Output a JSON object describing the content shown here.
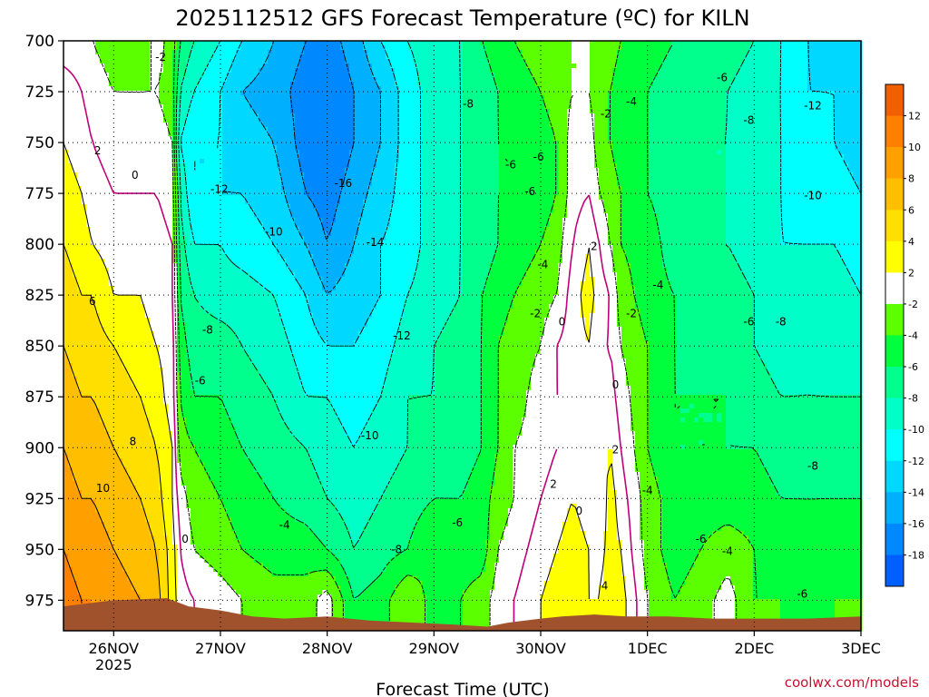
{
  "chart_data": {
    "type": "heatmap",
    "title": "2025112512 GFS Forecast Temperature (ºC) for KILN",
    "xlabel": "Forecast Time (UTC)",
    "ylabel": "",
    "credit": "coolwx.com/models",
    "y_ticks": [
      "700",
      "725",
      "750",
      "775",
      "800",
      "825",
      "850",
      "875",
      "900",
      "925",
      "950",
      "975"
    ],
    "ylim": [
      700,
      990
    ],
    "y_inverted": true,
    "x_ticks": [
      "26NOV",
      "27NOV",
      "28NOV",
      "29NOV",
      "30NOV",
      "1DEC",
      "2DEC",
      "3DEC"
    ],
    "x_tick_sub": "2025",
    "xlim": [
      -0.47,
      7.0
    ],
    "grid": true,
    "colorbar": {
      "labels": [
        "12",
        "10",
        "8",
        "6",
        "4",
        "2",
        "-2",
        "-4",
        "-6",
        "-8",
        "-10",
        "-12",
        "-14",
        "-16",
        "-18"
      ],
      "colors": [
        "#f06000",
        "#ff7f00",
        "#ff9f00",
        "#ffbf00",
        "#ffdf00",
        "#ffff00",
        "#ffffff",
        "#5bff00",
        "#00ff3c",
        "#00ff8c",
        "#00ffc8",
        "#00ffff",
        "#00d8ff",
        "#00b0ff",
        "#0088ff",
        "#0060ff"
      ]
    },
    "columns_x": [
      -0.47,
      -0.3,
      -0.2,
      0.0,
      0.25,
      0.4,
      0.55,
      0.62,
      0.75,
      1.0,
      1.2,
      1.5,
      1.8,
      2.0,
      2.25,
      2.5,
      2.75,
      3.0,
      3.25,
      3.45,
      3.6,
      3.75,
      4.0,
      4.15,
      4.3,
      4.45,
      4.55,
      4.65,
      4.75,
      5.0,
      5.25,
      5.5,
      5.75,
      6.0,
      6.25,
      6.5,
      6.75,
      7.0
    ],
    "levels": [
      700,
      725,
      750,
      775,
      800,
      825,
      850,
      875,
      900,
      925,
      950,
      975
    ],
    "temperature_c": [
      [
        -1,
        1,
        2,
        3,
        4,
        5,
        6,
        7,
        8,
        9,
        10,
        11
      ],
      [
        -1,
        0,
        1,
        2,
        3,
        4,
        5,
        6,
        7,
        8,
        9,
        10
      ],
      [
        -2,
        -1,
        0,
        1,
        2,
        4,
        5,
        6,
        7,
        8,
        9,
        10
      ],
      [
        -3,
        -2,
        -1,
        0,
        1,
        2,
        4,
        5,
        6,
        7,
        8,
        9
      ],
      [
        -4,
        -2,
        -1,
        0,
        1,
        2,
        3,
        4,
        5,
        6,
        7,
        8
      ],
      [
        -1,
        -2,
        -1,
        0,
        1,
        1,
        2,
        3,
        4,
        5,
        6,
        7
      ],
      [
        -3,
        -3,
        -2,
        -1,
        0,
        0,
        1,
        1,
        2,
        2,
        3,
        3
      ],
      [
        -6,
        -8,
        -10,
        -8,
        -7,
        -6,
        -5,
        -4,
        -3,
        -1,
        0,
        1
      ],
      [
        -8,
        -10,
        -12,
        -12,
        -10,
        -8,
        -7,
        -6,
        -4,
        -3,
        -2,
        0
      ],
      [
        -10,
        -12,
        -12,
        -12,
        -10,
        -9,
        -7,
        -6,
        -5,
        -4,
        -3,
        -1
      ],
      [
        -12,
        -14,
        -13,
        -12,
        -11,
        -9,
        -8,
        -7,
        -6,
        -5,
        -4,
        -2
      ],
      [
        -14,
        -15,
        -14,
        -13,
        -12,
        -10,
        -9,
        -8,
        -7,
        -6,
        -5,
        -3
      ],
      [
        -16,
        -17,
        -17,
        -16,
        -14,
        -12,
        -11,
        -10,
        -8,
        -7,
        -5,
        -3
      ],
      [
        -17,
        -18,
        -18,
        -17,
        -16,
        -14,
        -12,
        -10,
        -9,
        -8,
        -6,
        -1
      ],
      [
        -15,
        -16,
        -16,
        -15,
        -14,
        -13,
        -12,
        -11,
        -10,
        -9,
        -8,
        -6
      ],
      [
        -12,
        -14,
        -14,
        -13,
        -12,
        -12,
        -11,
        -10,
        -9,
        -8,
        -7,
        -5
      ],
      [
        -10,
        -11,
        -11,
        -11,
        -11,
        -10,
        -9,
        -8,
        -8,
        -7,
        -6,
        -2
      ],
      [
        -9,
        -9,
        -9,
        -9,
        -9,
        -9,
        -8,
        -8,
        -7,
        -6,
        -4,
        -5
      ],
      [
        -8,
        -8,
        -8,
        -8,
        -8,
        -8,
        -7,
        -7,
        -7,
        -6,
        -5,
        -4
      ],
      [
        -6,
        -7,
        -7,
        -7,
        -7,
        -6,
        -6,
        -6,
        -6,
        -5,
        -5,
        -3
      ],
      [
        -5,
        -6,
        -6,
        -6,
        -6,
        -5,
        -4,
        -4,
        -4,
        -3,
        -2,
        -1
      ],
      [
        -4,
        -5,
        -6,
        -6,
        -5,
        -4,
        -3,
        -3,
        -2,
        -2,
        -1,
        0
      ],
      [
        -3,
        -4,
        -5,
        -5,
        -4,
        -3,
        -2,
        -1,
        -1,
        0,
        1,
        2
      ],
      [
        -2,
        -3,
        -4,
        -4,
        -3,
        -2,
        0,
        0,
        0,
        1,
        2,
        3
      ],
      [
        -2,
        -2,
        -1,
        -1,
        0,
        1,
        1,
        0,
        0,
        2,
        3,
        3
      ],
      [
        -2,
        -2,
        -1,
        0,
        2,
        3,
        2,
        1,
        0,
        1,
        2,
        2
      ],
      [
        -2,
        -3,
        -3,
        -2,
        0,
        1,
        0,
        0,
        1,
        0,
        1,
        2
      ],
      [
        -3,
        -4,
        -4,
        -3,
        -2,
        0,
        0,
        1,
        2,
        3,
        3,
        4
      ],
      [
        -4,
        -5,
        -5,
        -4,
        -4,
        -3,
        -2,
        -1,
        0,
        1,
        2,
        3
      ],
      [
        -5,
        -6,
        -6,
        -6,
        -5,
        -5,
        -4,
        -4,
        -4,
        -3,
        -3,
        -2
      ],
      [
        -6,
        -7,
        -7,
        -7,
        -7,
        -6,
        -6,
        -6,
        -6,
        -5,
        -5,
        -4
      ],
      [
        -6,
        -7,
        -8,
        -8,
        -8,
        -7,
        -7,
        -6,
        -6,
        -5,
        -4,
        -3
      ],
      [
        -7,
        -8,
        -8,
        -8,
        -8,
        -7,
        -7,
        -6,
        -6,
        -5,
        -3,
        -1
      ],
      [
        -8,
        -9,
        -9,
        -9,
        -9,
        -8,
        -8,
        -7,
        -6,
        -5,
        -4,
        -4
      ],
      [
        -10,
        -10,
        -10,
        -10,
        -10,
        -9,
        -9,
        -8,
        -7,
        -6,
        -5,
        -4
      ],
      [
        -12,
        -12,
        -11,
        -11,
        -10,
        -9,
        -8,
        -8,
        -7,
        -6,
        -6,
        -5
      ],
      [
        -13,
        -12,
        -12,
        -11,
        -10,
        -9,
        -9,
        -8,
        -7,
        -6,
        -5,
        -4
      ],
      [
        -14,
        -13,
        -13,
        -12,
        -11,
        -10,
        -9,
        -8,
        -7,
        -6,
        -5,
        -4
      ]
    ],
    "contour_labels": [
      {
        "text": "-2",
        "x": 0.44,
        "p": 708
      },
      {
        "text": "2",
        "x": -0.15,
        "p": 754
      },
      {
        "text": "0",
        "x": 0.2,
        "p": 766
      },
      {
        "text": "6",
        "x": -0.2,
        "p": 828
      },
      {
        "text": "8",
        "x": 0.18,
        "p": 897
      },
      {
        "text": "10",
        "x": -0.1,
        "p": 920
      },
      {
        "text": "0",
        "x": 0.67,
        "p": 945
      },
      {
        "text": "-12",
        "x": 0.99,
        "p": 773
      },
      {
        "text": "-10",
        "x": 1.5,
        "p": 794
      },
      {
        "text": "-8",
        "x": 0.88,
        "p": 842
      },
      {
        "text": "-6",
        "x": 0.81,
        "p": 867
      },
      {
        "text": "-4",
        "x": 1.6,
        "p": 938
      },
      {
        "text": "-16",
        "x": 2.15,
        "p": 770
      },
      {
        "text": "-14",
        "x": 2.45,
        "p": 799
      },
      {
        "text": "-12",
        "x": 2.7,
        "p": 845
      },
      {
        "text": "-10",
        "x": 2.4,
        "p": 894
      },
      {
        "text": "-8",
        "x": 2.65,
        "p": 950
      },
      {
        "text": "-6",
        "x": 3.22,
        "p": 937
      },
      {
        "text": "-8",
        "x": 3.32,
        "p": 731
      },
      {
        "text": "-6",
        "x": 3.72,
        "p": 761
      },
      {
        "text": "-6",
        "x": 3.98,
        "p": 757
      },
      {
        "text": "-6",
        "x": 3.9,
        "p": 774
      },
      {
        "text": "-4",
        "x": 4.02,
        "p": 810
      },
      {
        "text": "-2",
        "x": 3.95,
        "p": 834
      },
      {
        "text": "0",
        "x": 4.2,
        "p": 838
      },
      {
        "text": "2",
        "x": 4.5,
        "p": 801
      },
      {
        "text": "-2",
        "x": 4.61,
        "p": 736
      },
      {
        "text": "-4",
        "x": 4.85,
        "p": 730
      },
      {
        "text": "-4",
        "x": 5.1,
        "p": 820
      },
      {
        "text": "-2",
        "x": 4.85,
        "p": 834
      },
      {
        "text": "0",
        "x": 4.7,
        "p": 869
      },
      {
        "text": "2",
        "x": 4.7,
        "p": 901
      },
      {
        "text": "2",
        "x": 4.12,
        "p": 918
      },
      {
        "text": "0",
        "x": 4.36,
        "p": 931
      },
      {
        "text": "4",
        "x": 4.6,
        "p": 968
      },
      {
        "text": "-4",
        "x": 5.0,
        "p": 921
      },
      {
        "text": "-6",
        "x": 5.7,
        "p": 718
      },
      {
        "text": "-8",
        "x": 5.95,
        "p": 739
      },
      {
        "text": "-12",
        "x": 6.55,
        "p": 732
      },
      {
        "text": "-10",
        "x": 6.55,
        "p": 776
      },
      {
        "text": "-6",
        "x": 5.95,
        "p": 838
      },
      {
        "text": "-8",
        "x": 6.25,
        "p": 838
      },
      {
        "text": "-8",
        "x": 6.55,
        "p": 909
      },
      {
        "text": "-6",
        "x": 5.5,
        "p": 945
      },
      {
        "text": "-4",
        "x": 5.75,
        "p": 951
      },
      {
        "text": "-6",
        "x": 6.45,
        "p": 972
      }
    ],
    "terrain": {
      "color": "#a0522d",
      "surface_p": [
        [
          -0.47,
          978
        ],
        [
          0.0,
          975
        ],
        [
          0.5,
          974
        ],
        [
          0.7,
          978
        ],
        [
          1.0,
          980
        ],
        [
          1.3,
          983
        ],
        [
          1.6,
          984
        ],
        [
          2.0,
          983
        ],
        [
          2.4,
          985
        ],
        [
          2.8,
          986
        ],
        [
          3.2,
          987
        ],
        [
          3.5,
          988
        ],
        [
          3.7,
          986
        ],
        [
          4.0,
          984
        ],
        [
          4.2,
          983
        ],
        [
          4.5,
          982
        ],
        [
          4.8,
          983
        ],
        [
          5.2,
          983
        ],
        [
          5.6,
          984
        ],
        [
          6.0,
          984
        ],
        [
          6.5,
          984
        ],
        [
          7.0,
          983
        ]
      ]
    }
  }
}
